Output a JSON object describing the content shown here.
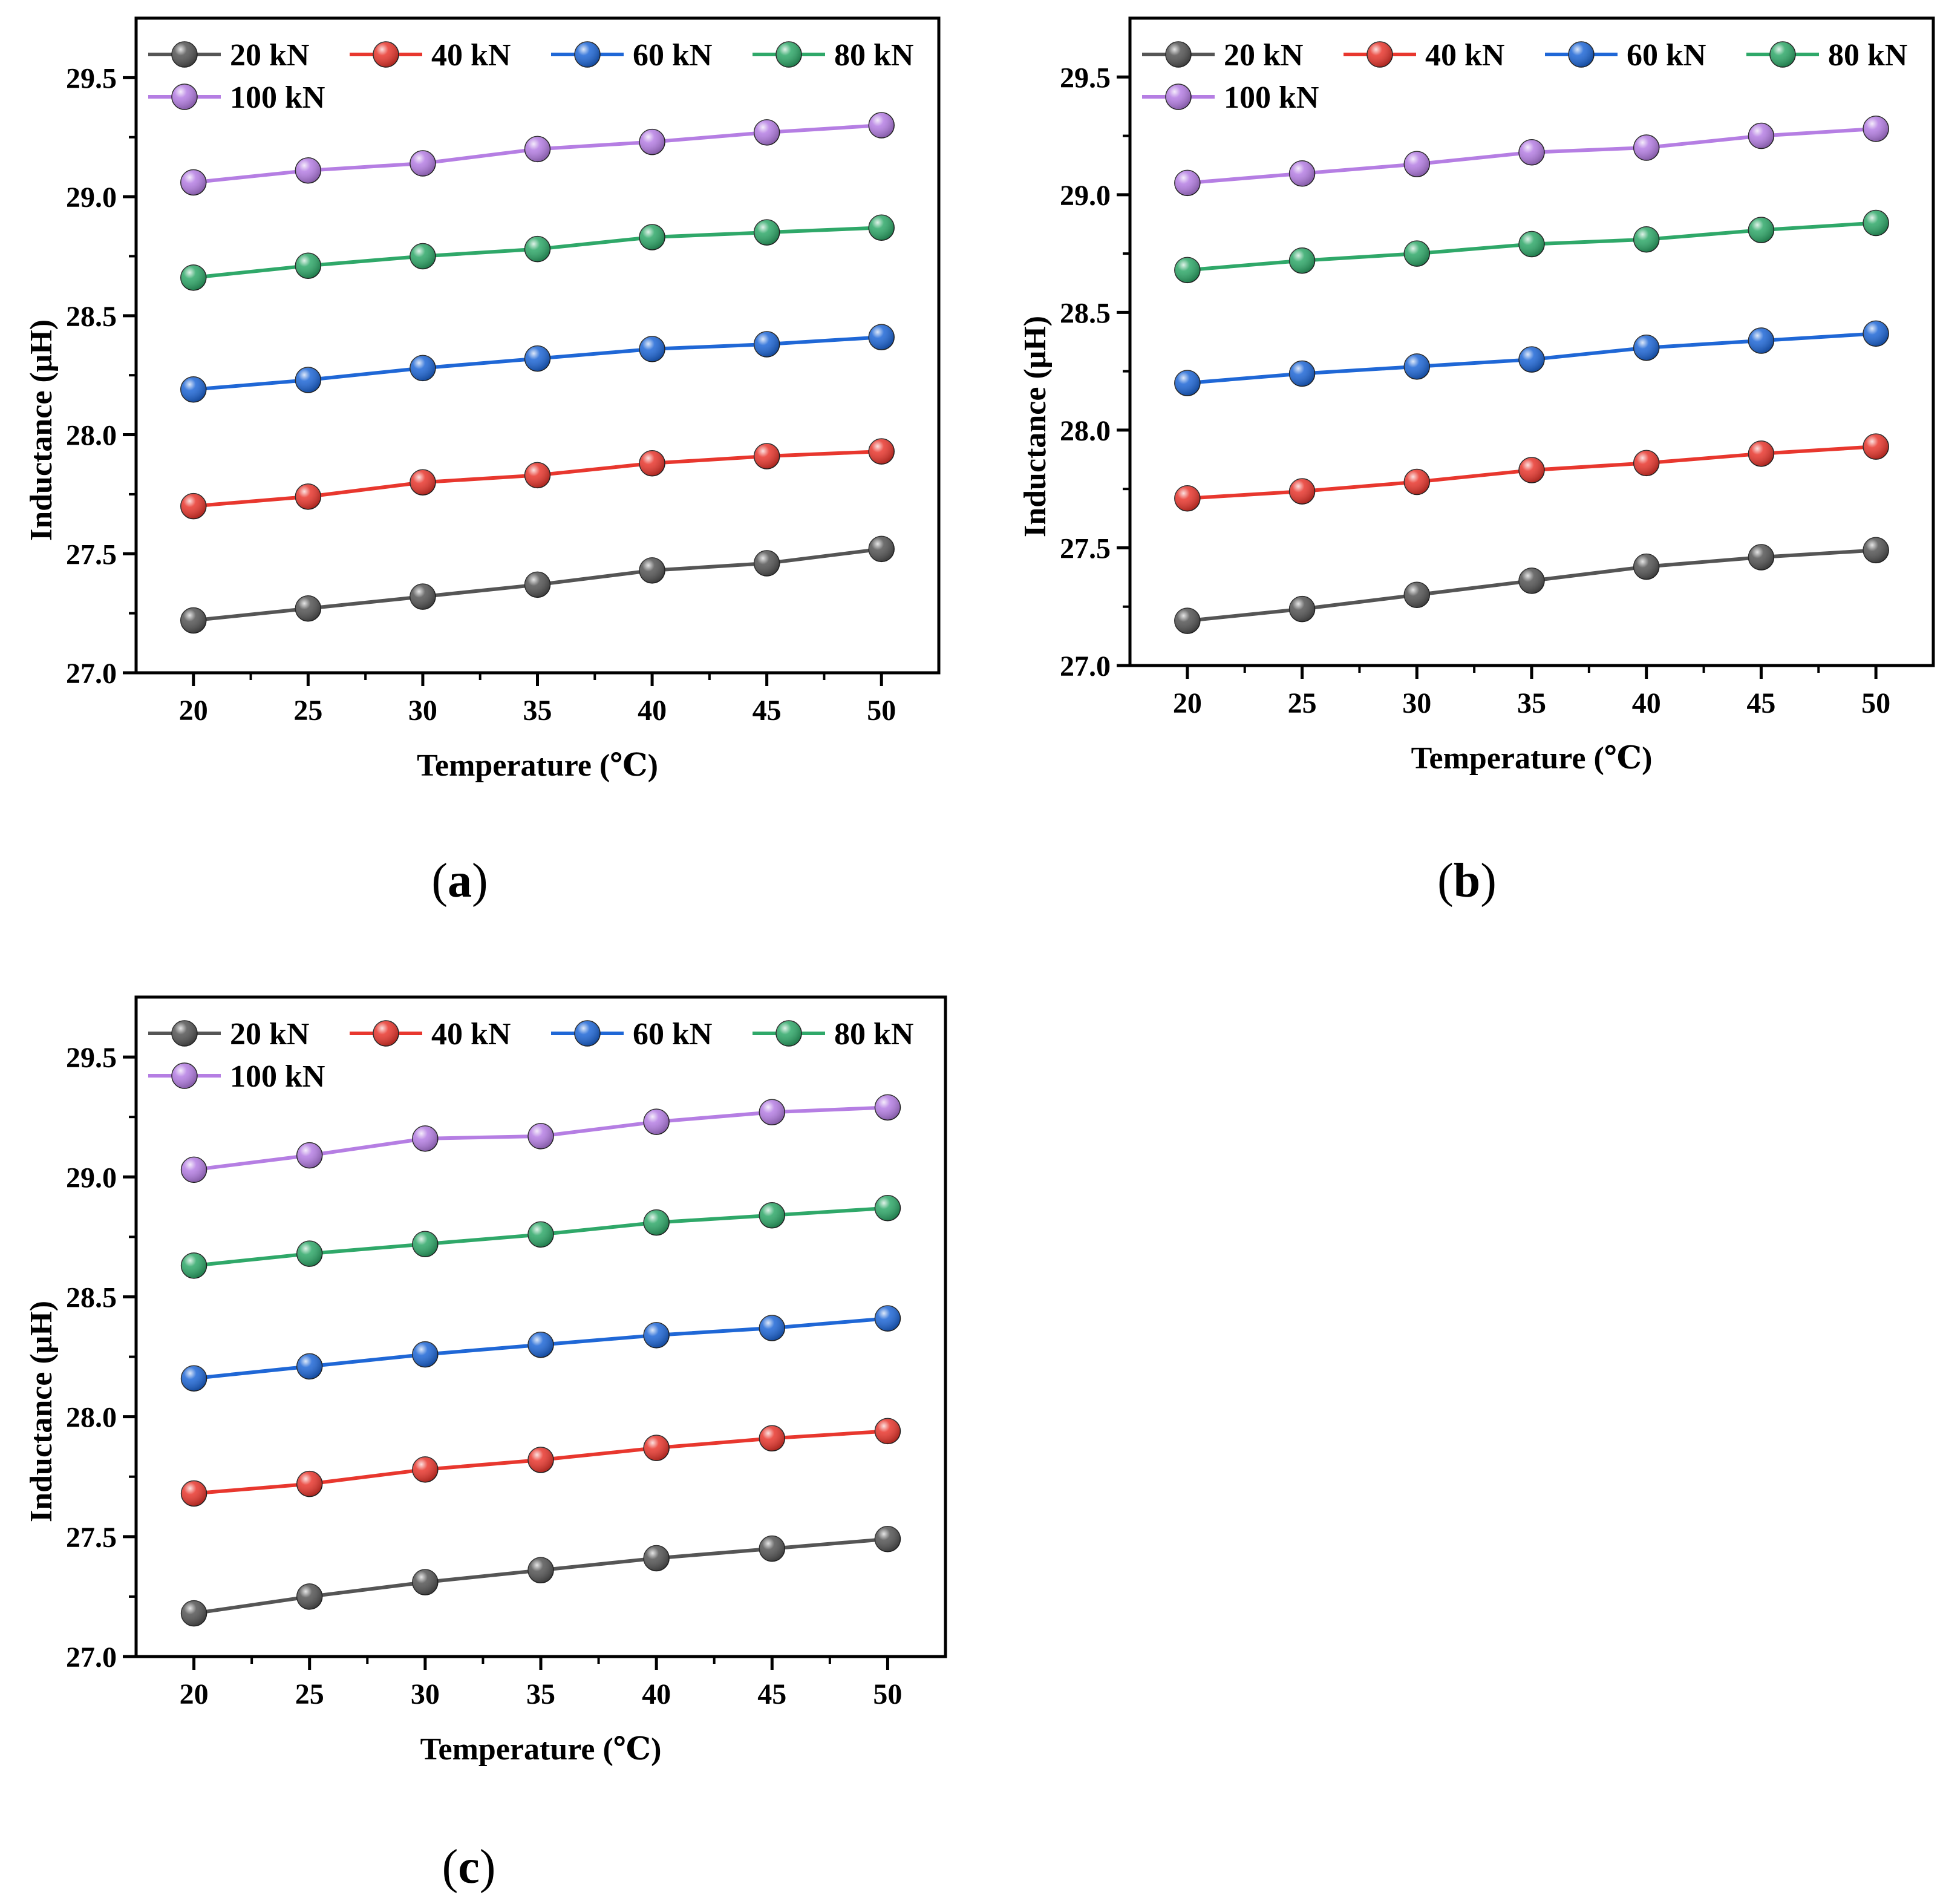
{
  "chart_data": [
    {
      "type": "line",
      "panel_label": "a",
      "xlabel": "Temperature (℃)",
      "ylabel": "Inductance  (μH)",
      "x": [
        20,
        25,
        30,
        35,
        40,
        45,
        50
      ],
      "xticks": [
        "20",
        "25",
        "30",
        "35",
        "40",
        "45",
        "50"
      ],
      "yticks": [
        "27.0",
        "27.5",
        "28.0",
        "28.5",
        "29.0",
        "29.5"
      ],
      "ylim": [
        27.0,
        29.75
      ],
      "xlim": [
        17.5,
        52.5
      ],
      "legend_position": "top-left",
      "series": [
        {
          "name": "20 kN",
          "color": "#555555",
          "values": [
            27.22,
            27.27,
            27.32,
            27.37,
            27.43,
            27.46,
            27.52
          ]
        },
        {
          "name": "40 kN",
          "color": "#e8372e",
          "values": [
            27.7,
            27.74,
            27.8,
            27.83,
            27.88,
            27.91,
            27.93
          ]
        },
        {
          "name": "60 kN",
          "color": "#1f67d6",
          "values": [
            28.19,
            28.23,
            28.28,
            28.32,
            28.36,
            28.38,
            28.41
          ]
        },
        {
          "name": "80 kN",
          "color": "#2fa869",
          "values": [
            28.66,
            28.71,
            28.75,
            28.78,
            28.83,
            28.85,
            28.87
          ]
        },
        {
          "name": "100 kN",
          "color": "#b57ee3",
          "values": [
            29.06,
            29.11,
            29.14,
            29.2,
            29.23,
            29.27,
            29.3
          ]
        }
      ]
    },
    {
      "type": "line",
      "panel_label": "b",
      "xlabel": "Temperature (℃)",
      "ylabel": "Inductance  (μH)",
      "x": [
        20,
        25,
        30,
        35,
        40,
        45,
        50
      ],
      "xticks": [
        "20",
        "25",
        "30",
        "35",
        "40",
        "45",
        "50"
      ],
      "yticks": [
        "27.0",
        "27.5",
        "28.0",
        "28.5",
        "29.0",
        "29.5"
      ],
      "ylim": [
        27.0,
        29.75
      ],
      "xlim": [
        17.5,
        52.5
      ],
      "legend_position": "top-left",
      "series": [
        {
          "name": "20 kN",
          "color": "#555555",
          "values": [
            27.19,
            27.24,
            27.3,
            27.36,
            27.42,
            27.46,
            27.49
          ]
        },
        {
          "name": "40 kN",
          "color": "#e8372e",
          "values": [
            27.71,
            27.74,
            27.78,
            27.83,
            27.86,
            27.9,
            27.93
          ]
        },
        {
          "name": "60 kN",
          "color": "#1f67d6",
          "values": [
            28.2,
            28.24,
            28.27,
            28.3,
            28.35,
            28.38,
            28.41
          ]
        },
        {
          "name": "80 kN",
          "color": "#2fa869",
          "values": [
            28.68,
            28.72,
            28.75,
            28.79,
            28.81,
            28.85,
            28.88
          ]
        },
        {
          "name": "100 kN",
          "color": "#b57ee3",
          "values": [
            29.05,
            29.09,
            29.13,
            29.18,
            29.2,
            29.25,
            29.28
          ]
        }
      ]
    },
    {
      "type": "line",
      "panel_label": "c",
      "xlabel": "Temperature (℃)",
      "ylabel": "Inductance  (μH)",
      "x": [
        20,
        25,
        30,
        35,
        40,
        45,
        50
      ],
      "xticks": [
        "20",
        "25",
        "30",
        "35",
        "40",
        "45",
        "50"
      ],
      "yticks": [
        "27.0",
        "27.5",
        "28.0",
        "28.5",
        "29.0",
        "29.5"
      ],
      "ylim": [
        27.0,
        29.75
      ],
      "xlim": [
        17.5,
        52.5
      ],
      "legend_position": "top-left",
      "series": [
        {
          "name": "20 kN",
          "color": "#555555",
          "values": [
            27.18,
            27.25,
            27.31,
            27.36,
            27.41,
            27.45,
            27.49
          ]
        },
        {
          "name": "40 kN",
          "color": "#e8372e",
          "values": [
            27.68,
            27.72,
            27.78,
            27.82,
            27.87,
            27.91,
            27.94
          ]
        },
        {
          "name": "60 kN",
          "color": "#1f67d6",
          "values": [
            28.16,
            28.21,
            28.26,
            28.3,
            28.34,
            28.37,
            28.41
          ]
        },
        {
          "name": "80 kN",
          "color": "#2fa869",
          "values": [
            28.63,
            28.68,
            28.72,
            28.76,
            28.81,
            28.84,
            28.87
          ]
        },
        {
          "name": "100 kN",
          "color": "#b57ee3",
          "values": [
            29.03,
            29.09,
            29.16,
            29.17,
            29.23,
            29.27,
            29.29
          ]
        }
      ]
    }
  ]
}
